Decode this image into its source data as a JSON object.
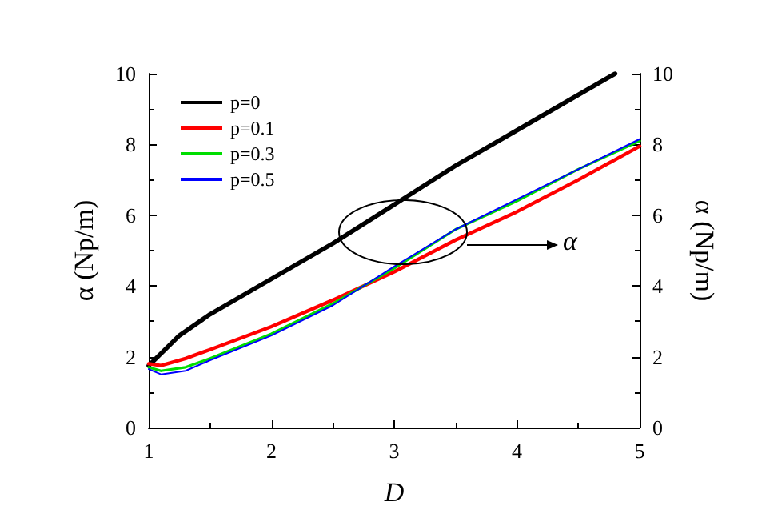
{
  "chart_data": {
    "type": "line",
    "xlabel": "D",
    "ylabel": "α (Np/m)",
    "y2label": "α (Np/m)",
    "xlim": [
      1,
      5
    ],
    "xticks": [
      1,
      2,
      3,
      4,
      5
    ],
    "ylim": [
      0,
      10
    ],
    "yticks": [
      0,
      2,
      4,
      6,
      8,
      10
    ],
    "y2lim": [
      0,
      10
    ],
    "y2ticks": [
      0,
      2,
      4,
      6,
      8,
      10
    ],
    "grid": false,
    "legend": "top left",
    "line_style": "solid",
    "marker": "none",
    "annotations": [
      "α"
    ],
    "series": [
      {
        "name": "p=0",
        "color": "#000000",
        "x": [
          1,
          1.25,
          1.5,
          2,
          2.5,
          3,
          3.5,
          4,
          4.5,
          4.8
        ],
        "values": [
          1.75,
          2.6,
          3.2,
          4.2,
          5.2,
          6.3,
          7.4,
          8.4,
          9.4,
          10
        ]
      },
      {
        "name": "p=0.1",
        "color": "#ff0000",
        "x": [
          1,
          1.1,
          1.3,
          1.5,
          2,
          2.5,
          3,
          3.5,
          4,
          4.5,
          5
        ],
        "values": [
          1.8,
          1.75,
          1.95,
          2.2,
          2.85,
          3.6,
          4.4,
          5.3,
          6.1,
          7.0,
          7.95
        ]
      },
      {
        "name": "p=0.3",
        "color": "#00dd00",
        "x": [
          1,
          1.1,
          1.3,
          1.5,
          2,
          2.5,
          3,
          3.5,
          4,
          4.5,
          5
        ],
        "values": [
          1.7,
          1.6,
          1.7,
          1.95,
          2.65,
          3.5,
          4.5,
          5.6,
          6.4,
          7.3,
          8.1
        ]
      },
      {
        "name": "p=0.5",
        "color": "#0000ff",
        "x": [
          1,
          1.1,
          1.3,
          1.5,
          2,
          2.5,
          3,
          3.5,
          4,
          4.5,
          5
        ],
        "values": [
          1.65,
          1.5,
          1.6,
          1.9,
          2.6,
          3.45,
          4.55,
          5.6,
          6.45,
          7.3,
          8.15
        ]
      }
    ]
  }
}
